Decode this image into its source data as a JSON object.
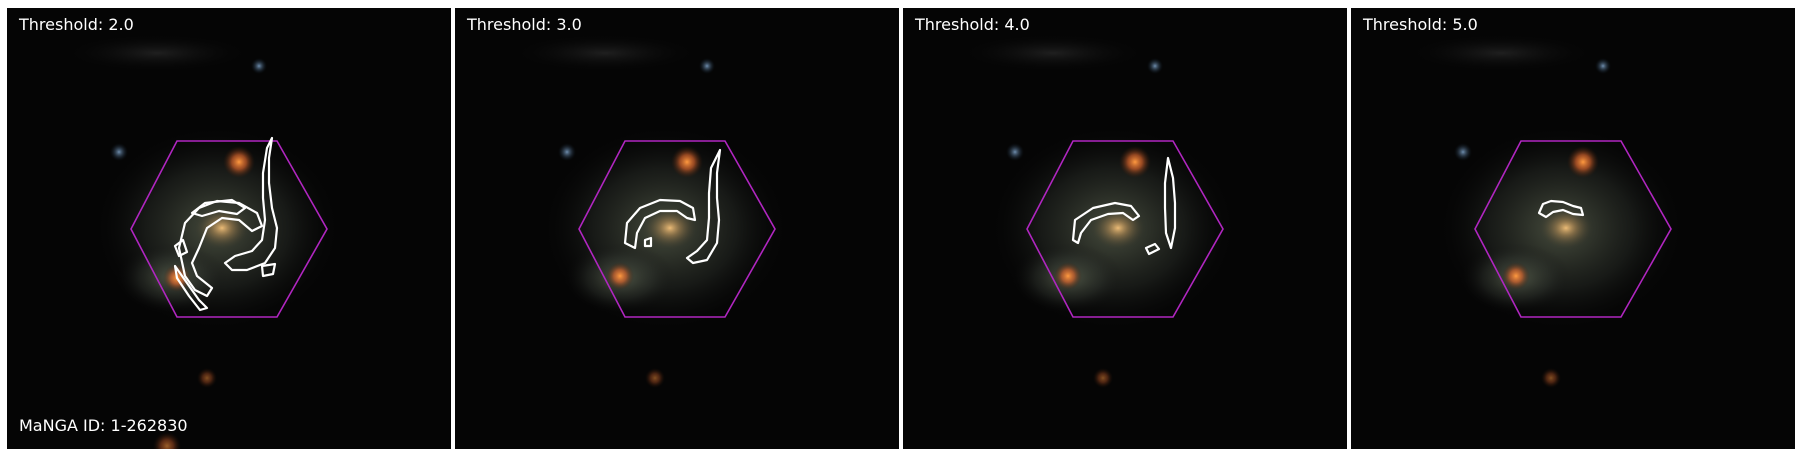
{
  "figure": {
    "panels": [
      {
        "threshold_label": "Threshold: 2.0"
      },
      {
        "threshold_label": "Threshold: 3.0"
      },
      {
        "threshold_label": "Threshold: 4.0"
      },
      {
        "threshold_label": "Threshold: 5.0"
      }
    ],
    "galaxy_id_label": "MaNGA ID: 1-262830"
  },
  "colors": {
    "background": "#050505",
    "hexagon": "#b026c0",
    "contour": "#ffffff",
    "text": "#ffffff"
  }
}
